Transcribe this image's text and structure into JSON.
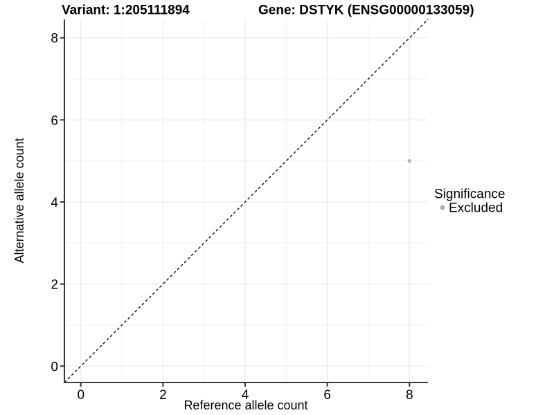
{
  "header": {
    "variant_title": "Variant: 1:205111894",
    "gene_title": "Gene: DSTYK (ENSG00000133059)"
  },
  "chart_data": {
    "type": "scatter",
    "xlabel": "Reference allele count",
    "ylabel": "Alternative allele count",
    "xlim": [
      -0.4,
      8.45
    ],
    "ylim": [
      -0.4,
      8.45
    ],
    "x_ticks": [
      0,
      2,
      4,
      6,
      8
    ],
    "y_ticks": [
      0,
      2,
      4,
      6,
      8
    ],
    "x_minor_ticks": [
      1,
      3,
      5,
      7
    ],
    "y_minor_ticks": [
      1,
      3,
      5,
      7
    ],
    "grid": true,
    "reference_line": {
      "kind": "identity",
      "style": "dashed",
      "color": "#000000"
    },
    "series": [
      {
        "name": "Excluded",
        "color": "#b5b5b5",
        "points": [
          {
            "x": 8,
            "y": 5
          }
        ]
      }
    ]
  },
  "legend": {
    "title": "Significance",
    "position": "right",
    "items": [
      {
        "label": "Excluded",
        "color": "#b0b0b0",
        "marker": "circle"
      }
    ]
  },
  "colors": {
    "background": "#ffffff",
    "grid_major": "#e5e5e5",
    "grid_minor": "#f0f0f0",
    "axis_line": "#3a3a3a",
    "tick_mark": "#333333",
    "text": "#000000"
  }
}
